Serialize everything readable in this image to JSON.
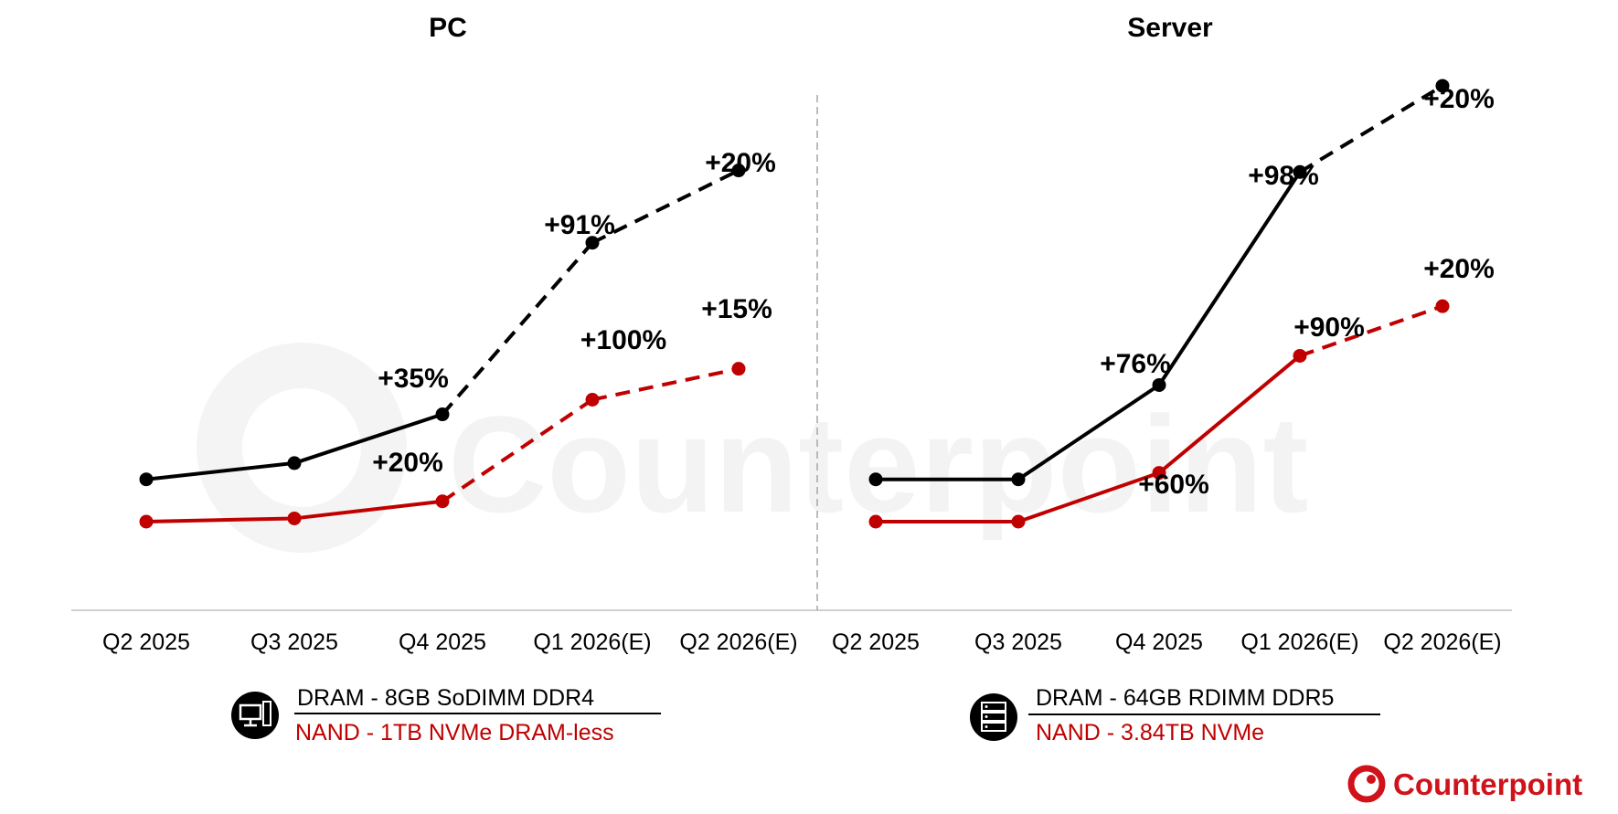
{
  "colors": {
    "dram": "#000000",
    "nand": "#c00000",
    "brand": "#d0121b",
    "axis": "#bfbfbf"
  },
  "brand": {
    "name": "Counterpoint"
  },
  "watermark": "Counterpoint",
  "chart_data": [
    {
      "type": "line",
      "title": "PC",
      "categories": [
        "Q2 2025",
        "Q3 2025",
        "Q4 2025",
        "Q1 2026(E)",
        "Q2 2026(E)"
      ],
      "projection_from_index": 2,
      "ylim": [
        0,
        10
      ],
      "series": [
        {
          "name": "DRAM - 8GB SoDIMM DDR4",
          "color": "#000000",
          "values": [
            1.52,
            1.72,
            2.32,
            4.43,
            5.32
          ],
          "labels": [
            "",
            "",
            "+35%",
            "+91%",
            "+20%"
          ]
        },
        {
          "name": "NAND - 1TB NVMe DRAM-less",
          "color": "#c00000",
          "values": [
            1.0,
            1.04,
            1.25,
            2.5,
            2.88
          ],
          "labels": [
            "",
            "",
            "+20%",
            "+100%",
            "+15%"
          ]
        }
      ],
      "legend_icon": "desktop-pc-icon"
    },
    {
      "type": "line",
      "title": "Server",
      "categories": [
        "Q2 2025",
        "Q3 2025",
        "Q4 2025",
        "Q1 2026(E)",
        "Q2 2026(E)"
      ],
      "projection_from_index": 3,
      "ylim": [
        0,
        10
      ],
      "series": [
        {
          "name": "DRAM - 64GB RDIMM DDR5",
          "color": "#000000",
          "values": [
            1.52,
            1.52,
            2.68,
            5.3,
            6.36
          ],
          "labels": [
            "",
            "",
            "+76%",
            "+98%",
            "+20%"
          ]
        },
        {
          "name": "NAND - 3.84TB NVMe",
          "color": "#c00000",
          "values": [
            1.0,
            1.0,
            1.6,
            3.04,
            3.65
          ],
          "labels": [
            "",
            "",
            "+60%",
            "+90%",
            "+20%"
          ]
        }
      ],
      "legend_icon": "server-rack-icon"
    }
  ]
}
